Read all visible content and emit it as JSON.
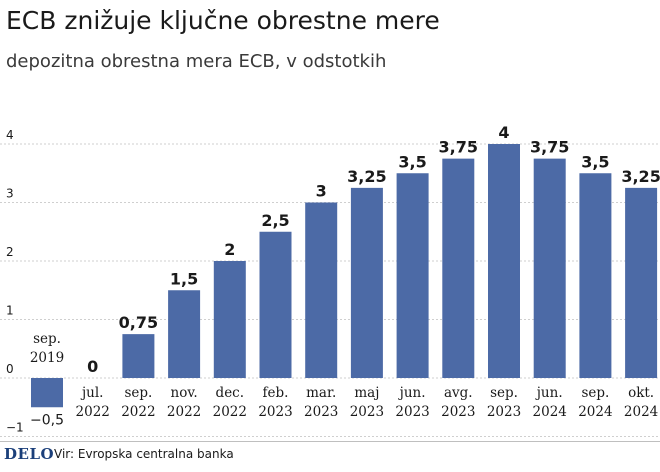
{
  "title": "ECB znižuje ključne obrestne mere",
  "subtitle": "depozitna obrestna mera ECB, v odstotkih",
  "brand": "DELO",
  "source": "Vir: Evropska centralna banka",
  "colors": {
    "bar": "#4c6aa6",
    "grid": "#cfcfcf",
    "text": "#1a1a1a"
  },
  "chart_data": {
    "type": "bar",
    "categories": [
      [
        "sep.",
        "2019"
      ],
      [
        "jul.",
        "2022"
      ],
      [
        "sep.",
        "2022"
      ],
      [
        "nov.",
        "2022"
      ],
      [
        "dec.",
        "2022"
      ],
      [
        "feb.",
        "2023"
      ],
      [
        "mar.",
        "2023"
      ],
      [
        "maj",
        "2023"
      ],
      [
        "jun.",
        "2023"
      ],
      [
        "avg.",
        "2023"
      ],
      [
        "sep.",
        "2023"
      ],
      [
        "jun.",
        "2024"
      ],
      [
        "sep.",
        "2024"
      ],
      [
        "okt.",
        "2024"
      ]
    ],
    "values": [
      -0.5,
      0,
      0.75,
      1.5,
      2,
      2.5,
      3,
      3.25,
      3.5,
      3.75,
      4,
      3.75,
      3.5,
      3.25
    ],
    "value_labels": [
      "−0,5",
      "0",
      "0,75",
      "1,5",
      "2",
      "2,5",
      "3",
      "3,25",
      "3,5",
      "3,75",
      "4",
      "3,75",
      "3,5",
      "3,25"
    ],
    "yticks": [
      -1,
      0,
      1,
      2,
      3,
      4
    ],
    "ytick_labels": [
      "−1",
      "0",
      "1",
      "2",
      "3",
      "4"
    ],
    "ylim": [
      -1,
      4.4
    ],
    "grid": true
  }
}
